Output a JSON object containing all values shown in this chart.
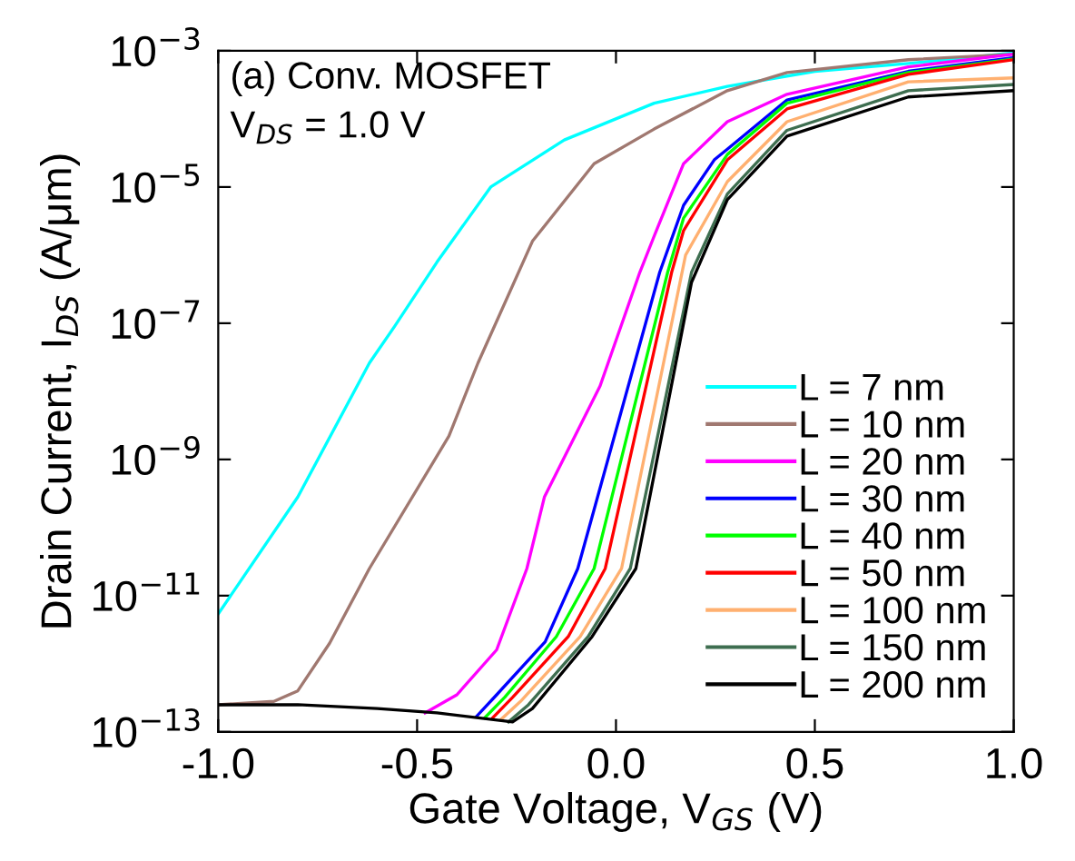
{
  "chart_data": {
    "type": "line",
    "xlabel": "Gate Voltage, V$_{GS}$ (V)",
    "ylabel": "Drain Current, I$_{DS}$ (A/μm)",
    "annotations": [
      "(a) Conv. MOSFET",
      "V$_{DS}$ = 1.0 V"
    ],
    "log": "y",
    "grid": false,
    "legend": "lower right",
    "marker": "none",
    "line_style": "solid",
    "xlim": [
      -1.0,
      1.0
    ],
    "xticks": [
      {
        "value": -1.0,
        "label": "-1.0"
      },
      {
        "value": -0.5,
        "label": "-0.5"
      },
      {
        "value": 0.0,
        "label": "0.0"
      },
      {
        "value": 0.5,
        "label": "0.5"
      },
      {
        "value": 1.0,
        "label": "1.0"
      }
    ],
    "ylim": [
      1e-13,
      0.001
    ],
    "yticks": [
      {
        "value": 1e-13,
        "label": "10$^{−13}$"
      },
      {
        "value": 1e-11,
        "label": "10$^{−11}$"
      },
      {
        "value": 1e-09,
        "label": "10$^{−9}$"
      },
      {
        "value": 1e-07,
        "label": "10$^{−7}$"
      },
      {
        "value": 1e-05,
        "label": "10$^{−5}$"
      },
      {
        "value": 0.001,
        "label": "10$^{−3}$"
      }
    ],
    "series": [
      {
        "name": "L = 7 nm",
        "color": "#00ffff",
        "x": [
          -1.0,
          -0.8,
          -0.62,
          -0.557,
          -0.45,
          -0.315,
          -0.13,
          0.096,
          0.28,
          0.5,
          0.735,
          1.0
        ],
        "values": [
          5.4e-12,
          2.8e-10,
          2.6e-08,
          8.9e-08,
          7.9e-07,
          1e-05,
          4.9e-05,
          0.00017,
          0.0003,
          0.0005,
          0.00065,
          0.00093
        ]
      },
      {
        "name": "L = 10 nm",
        "color": "#a07870",
        "x": [
          -1.0,
          -0.86,
          -0.8,
          -0.72,
          -0.62,
          -0.42,
          -0.347,
          -0.21,
          -0.055,
          0.096,
          0.28,
          0.43,
          0.735,
          1.0
        ],
        "values": [
          2.5e-13,
          2.8e-13,
          4e-13,
          2e-12,
          2.5e-11,
          2.2e-09,
          2.6e-08,
          1.6e-06,
          2.2e-05,
          7.1e-05,
          0.00026,
          0.00048,
          0.00074,
          0.00089
        ]
      },
      {
        "name": "L = 20 nm",
        "color": "#ff00ff",
        "x": [
          -0.48,
          -0.4,
          -0.3,
          -0.224,
          -0.18,
          -0.04,
          0.06,
          0.096,
          0.17,
          0.28,
          0.43,
          0.735,
          1.0
        ],
        "values": [
          1.9e-13,
          3.5e-13,
          1.6e-12,
          2.5e-11,
          2.8e-10,
          1.2e-08,
          5.6e-07,
          1.9e-06,
          2.2e-05,
          9.1e-05,
          0.00023,
          0.00058,
          0.00089
        ]
      },
      {
        "name": "L = 30 nm",
        "color": "#0000ff",
        "x": [
          -0.35,
          -0.3,
          -0.178,
          -0.096,
          0.11,
          0.17,
          0.247,
          0.28,
          0.43,
          0.735,
          1.0
        ],
        "values": [
          1.7e-13,
          3.5e-13,
          2.1e-12,
          2.5e-11,
          5.6e-07,
          5.4e-06,
          2.5e-05,
          3.6e-05,
          0.00019,
          0.0005,
          0.00079
        ]
      },
      {
        "name": "L = 40 nm",
        "color": "#00ff00",
        "x": [
          -0.33,
          -0.28,
          -0.15,
          -0.055,
          0.13,
          0.17,
          0.28,
          0.43,
          0.735,
          1.0
        ],
        "values": [
          1.6e-13,
          3.2e-13,
          2.5e-12,
          2.5e-11,
          5.6e-07,
          3.5e-06,
          3e-05,
          0.00017,
          0.00048,
          0.00076
        ]
      },
      {
        "name": "L = 50 nm",
        "color": "#ff0000",
        "x": [
          -0.31,
          -0.26,
          -0.12,
          -0.027,
          0.14,
          0.17,
          0.28,
          0.43,
          0.735,
          1.0
        ],
        "values": [
          1.6e-13,
          3.2e-13,
          2.5e-12,
          2.5e-11,
          5.6e-07,
          2.3e-06,
          2.5e-05,
          0.00014,
          0.00045,
          0.00074
        ]
      },
      {
        "name": "L = 100 nm",
        "color": "#ffb070",
        "x": [
          -0.29,
          -0.24,
          -0.09,
          0.014,
          0.175,
          0.28,
          0.43,
          0.735,
          1.0
        ],
        "values": [
          1.5e-13,
          2.8e-13,
          2.5e-12,
          2.5e-11,
          1e-06,
          1.2e-05,
          9.1e-05,
          0.00035,
          0.0004
        ]
      },
      {
        "name": "L = 150 nm",
        "color": "#3e6e50",
        "x": [
          -0.27,
          -0.22,
          -0.07,
          0.036,
          0.19,
          0.28,
          0.43,
          0.735,
          1.0
        ],
        "values": [
          1.4e-13,
          2.5e-13,
          2.5e-12,
          2.5e-11,
          5.6e-07,
          7.9e-06,
          6.8e-05,
          0.00026,
          0.00032
        ]
      },
      {
        "name": "L = 200 nm",
        "color": "#000000",
        "x": [
          -1.0,
          -0.8,
          -0.6,
          -0.45,
          -0.26,
          -0.21,
          -0.06,
          0.05,
          0.19,
          0.28,
          0.43,
          0.735,
          1.0
        ],
        "values": [
          2.5e-13,
          2.5e-13,
          2.2e-13,
          1.9e-13,
          1.4e-13,
          2.2e-13,
          2.5e-12,
          2.5e-11,
          4e-07,
          6.5e-06,
          5.6e-05,
          0.00021,
          0.00026
        ]
      }
    ]
  }
}
